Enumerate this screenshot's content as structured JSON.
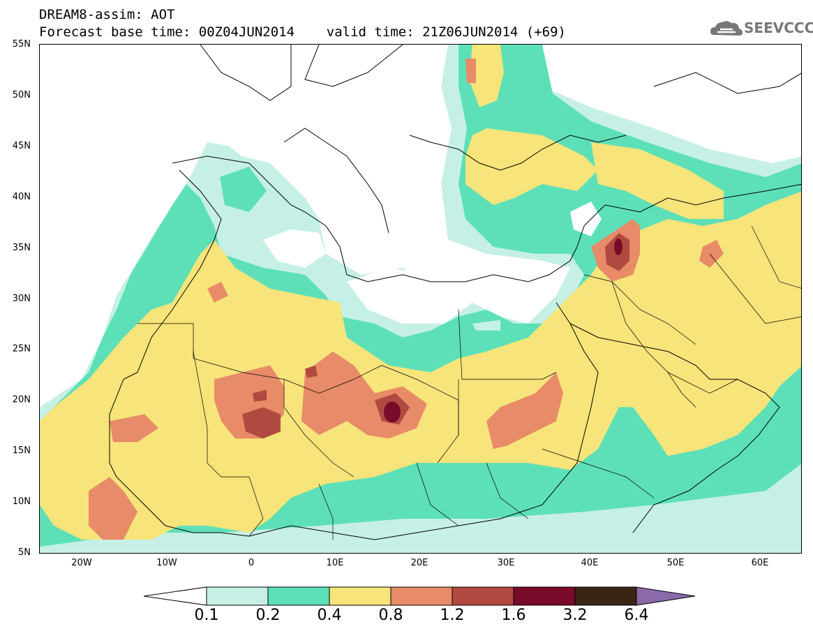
{
  "header": {
    "line1": "DREAM8-assim: AOT",
    "line2": "Forecast base time: 00Z04JUN2014    valid time: 21Z06JUN2014 (+69)"
  },
  "logo": {
    "text": "SEEVCCC"
  },
  "map": {
    "lat_labels": [
      "55N",
      "50N",
      "45N",
      "40N",
      "35N",
      "30N",
      "25N",
      "20N",
      "15N",
      "10N",
      "5N"
    ],
    "lon_labels": [
      "20W",
      "10W",
      "0",
      "10E",
      "20E",
      "30E",
      "40E",
      "50E",
      "60E"
    ],
    "lat_range": [
      5,
      55
    ],
    "lon_range": [
      -25,
      65
    ]
  },
  "colorbar": {
    "labels": [
      "0.1",
      "0.2",
      "0.4",
      "0.8",
      "1.2",
      "1.6",
      "3.2",
      "6.4"
    ],
    "colors": [
      "#c6f0e6",
      "#5de0b8",
      "#f7e47a",
      "#e88b68",
      "#b04a40",
      "#7a0a2a",
      "#3b2414",
      "#8a6aa8"
    ]
  },
  "colors": {
    "white": "#ffffff",
    "light_teal": "#c6f0e6",
    "teal": "#5de0b8",
    "yellow": "#f7e47a",
    "orange": "#e88b68",
    "brick": "#b04a40",
    "maroon": "#7a0a2a"
  }
}
